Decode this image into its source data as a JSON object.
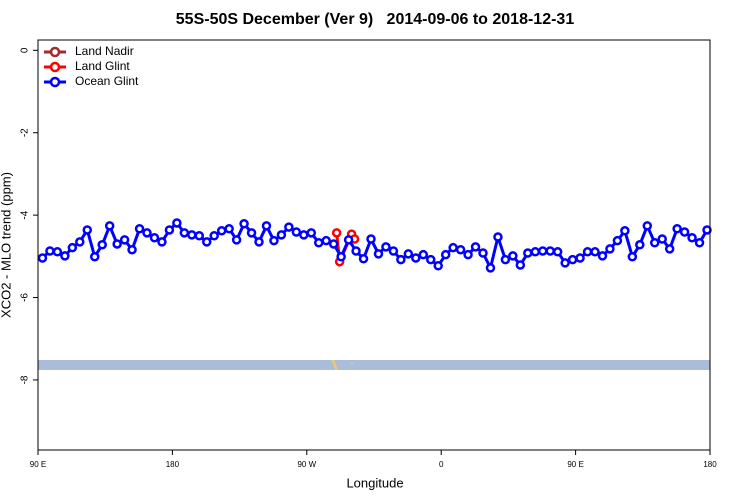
{
  "chart_data": {
    "type": "line",
    "title": "55S-50S December (Ver 9)   2014-09-06 to 2018-12-31",
    "x_label": "Longitude",
    "y_label": "XCO2 - MLO trend (ppm)",
    "xlim": [
      90,
      540
    ],
    "xticks": [
      {
        "value": 90,
        "label": "90 E"
      },
      {
        "value": 180,
        "label": "180"
      },
      {
        "value": 270,
        "label": "90 W"
      },
      {
        "value": 360,
        "label": "0"
      },
      {
        "value": 450,
        "label": "90 E"
      },
      {
        "value": 540,
        "label": "180"
      }
    ],
    "ylim": [
      -9.7,
      0.25
    ],
    "yticks": [
      0,
      -2,
      -4,
      -6,
      -8
    ],
    "legend": "top-left",
    "series": [
      {
        "name": "Land Nadir",
        "color": "#a52a2a",
        "x": [],
        "values": []
      },
      {
        "name": "Land Glint",
        "color": "#ff0000",
        "x": [
          290,
          292,
          300,
          302
        ],
        "values": [
          -4.43,
          -5.13,
          -4.46,
          -4.58
        ]
      },
      {
        "name": "Ocean Glint",
        "color": "#0000ff",
        "x": [
          93,
          98,
          103,
          108,
          113,
          118,
          123,
          128,
          133,
          138,
          143,
          148,
          153,
          158,
          163,
          168,
          173,
          178,
          183,
          188,
          193,
          198,
          203,
          208,
          213,
          218,
          223,
          228,
          233,
          238,
          243,
          248,
          253,
          258,
          263,
          268,
          273,
          278,
          283,
          288,
          293,
          298,
          303,
          308,
          313,
          318,
          323,
          328,
          333,
          338,
          343,
          348,
          353,
          358,
          363,
          368,
          373,
          378,
          383,
          388,
          393,
          398,
          403,
          408,
          413,
          418,
          423,
          428,
          433,
          438,
          443,
          448,
          453,
          458,
          463,
          468,
          473,
          478,
          483,
          488,
          493,
          498,
          503,
          508,
          513,
          518,
          523,
          528,
          533,
          538
        ],
        "values": [
          -5.04,
          -4.87,
          -4.89,
          -4.99,
          -4.79,
          -4.65,
          -4.36,
          -5.01,
          -4.72,
          -4.26,
          -4.7,
          -4.6,
          -4.84,
          -4.33,
          -4.43,
          -4.55,
          -4.65,
          -4.36,
          -4.19,
          -4.43,
          -4.48,
          -4.5,
          -4.65,
          -4.5,
          -4.38,
          -4.33,
          -4.6,
          -4.21,
          -4.43,
          -4.65,
          -4.26,
          -4.62,
          -4.48,
          -4.29,
          -4.41,
          -4.48,
          -4.43,
          -4.67,
          -4.62,
          -4.7,
          -5.01,
          -4.6,
          -4.87,
          -5.06,
          -4.58,
          -4.94,
          -4.77,
          -4.87,
          -5.08,
          -4.94,
          -5.04,
          -4.96,
          -5.08,
          -5.23,
          -4.96,
          -4.79,
          -4.84,
          -4.96,
          -4.77,
          -4.92,
          -5.28,
          -4.53,
          -5.08,
          -4.99,
          -5.21,
          -4.92,
          -4.89,
          -4.87,
          -4.87,
          -4.89,
          -5.16,
          -5.08,
          -5.04,
          -4.89,
          -4.89,
          -4.99,
          -4.82,
          -4.62,
          -4.38,
          -5.01,
          -4.72,
          -4.26,
          -4.67,
          -4.58,
          -4.82,
          -4.33,
          -4.41,
          -4.55,
          -4.67,
          -4.36
        ]
      }
    ]
  }
}
